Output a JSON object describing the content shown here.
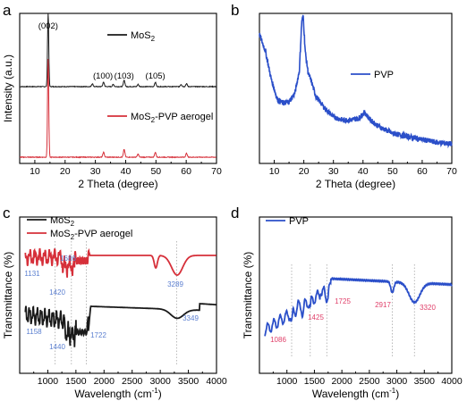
{
  "panels": {
    "a": "a",
    "b": "b",
    "c": "c",
    "d": "d"
  },
  "colors": {
    "black": "#1a1a1a",
    "red": "#d6303a",
    "blue": "#2b4fc9",
    "label_blue": "#5b7fd0",
    "label_pink": "#e0406a"
  },
  "chart_data": [
    {
      "id": "a",
      "type": "line",
      "xlabel": "2 Theta (degree)",
      "ylabel": "Intensity (a.u.)",
      "xlim": [
        5,
        70
      ],
      "xticks": [
        "10",
        "20",
        "30",
        "40",
        "50",
        "60",
        "70"
      ],
      "legend": [
        "MoS",
        "2"
      ],
      "legend2": [
        "MoS",
        "2",
        "-PVP aerogel"
      ],
      "series": [
        {
          "name": "MoS2",
          "color": "#1a1a1a",
          "peaks": [
            [
              14.4,
              1.0
            ],
            [
              29.0,
              0.04
            ],
            [
              32.7,
              0.06
            ],
            [
              35.9,
              0.03
            ],
            [
              39.5,
              0.09
            ],
            [
              44.1,
              0.03
            ],
            [
              49.8,
              0.06
            ],
            [
              58.3,
              0.03
            ],
            [
              60.1,
              0.04
            ]
          ],
          "peak_labels": [
            "(002)",
            "(100)",
            "(103)",
            "(105)"
          ],
          "peak_label_x": [
            14.4,
            32.5,
            39.5,
            49.8
          ]
        },
        {
          "name": "MoS2-PVP aerogel",
          "color": "#d6303a",
          "peaks": [
            [
              14.4,
              1.0
            ],
            [
              32.7,
              0.05
            ],
            [
              39.5,
              0.08
            ],
            [
              44.1,
              0.03
            ],
            [
              49.8,
              0.05
            ],
            [
              60.1,
              0.04
            ]
          ]
        }
      ]
    },
    {
      "id": "b",
      "type": "line",
      "xlabel": "2 Theta (degree)",
      "xlim": [
        5,
        70
      ],
      "xticks": [
        "10",
        "20",
        "30",
        "40",
        "50",
        "60",
        "70"
      ],
      "legend": [
        "PVP"
      ],
      "series": [
        {
          "name": "PVP",
          "color": "#2b4fc9",
          "x": [
            5,
            7,
            9,
            11,
            13,
            15,
            17,
            18.5,
            19.3,
            19.8,
            20.5,
            21.5,
            22.5,
            24,
            27,
            30,
            33,
            36,
            38.5,
            40.5,
            42.5,
            45,
            50,
            55,
            60,
            65,
            70
          ],
          "y": [
            0.86,
            0.75,
            0.56,
            0.43,
            0.4,
            0.41,
            0.47,
            0.62,
            0.95,
            0.98,
            0.74,
            0.6,
            0.55,
            0.45,
            0.37,
            0.31,
            0.29,
            0.29,
            0.3,
            0.34,
            0.29,
            0.25,
            0.2,
            0.18,
            0.16,
            0.14,
            0.13
          ]
        }
      ]
    },
    {
      "id": "c",
      "type": "line",
      "xlabel": "Wavelength (cm",
      "xlabel_sup": "-1",
      "xlabel_end": ")",
      "ylabel": "Transmittance (%)",
      "xlim": [
        500,
        4000
      ],
      "xticks": [
        "1000",
        "1500",
        "2000",
        "2500",
        "3000",
        "3500",
        "4000"
      ],
      "legend": [
        "MoS",
        "2"
      ],
      "legend2": [
        "MoS",
        "2",
        "-PVP aerogel"
      ],
      "red_annotations": [
        "1131",
        "1420",
        "1686",
        "3289"
      ],
      "red_annotation_x": [
        1131,
        1420,
        1686,
        3289
      ],
      "black_annotations": [
        "1158",
        "1440",
        "1722",
        "3349"
      ],
      "black_annotation_x": [
        1158,
        1440,
        1722,
        3349
      ]
    },
    {
      "id": "d",
      "type": "line",
      "xlabel": "Wavelength (cm",
      "xlabel_sup": "-1",
      "xlabel_end": ")",
      "ylabel": "Transmittance (%)",
      "xlim": [
        500,
        4000
      ],
      "xticks": [
        "1000",
        "1500",
        "2000",
        "2500",
        "3000",
        "3500",
        "4000"
      ],
      "legend": [
        "PVP"
      ],
      "annotations": [
        "1086",
        "1425",
        "1725",
        "2917",
        "3320"
      ],
      "annotation_x": [
        1086,
        1425,
        1725,
        2917,
        3320
      ]
    }
  ]
}
